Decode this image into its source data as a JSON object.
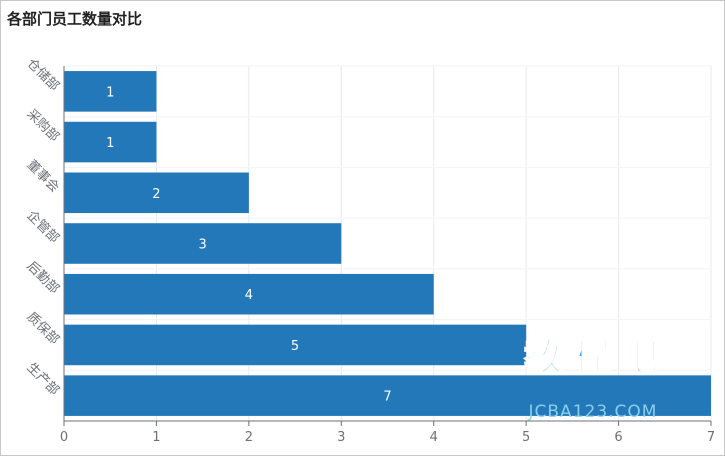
{
  "chart_data": {
    "type": "bar",
    "orientation": "horizontal",
    "title": "各部门员工数量对比",
    "categories": [
      "生产部",
      "质保部",
      "后勤部",
      "企管部",
      "董事会",
      "采购部",
      "仓储部"
    ],
    "values": [
      7,
      5,
      4,
      3,
      2,
      1,
      1
    ],
    "xlabel": "",
    "ylabel": "",
    "xlim": [
      0,
      7
    ],
    "xticks": [
      0,
      1,
      2,
      3,
      4,
      5,
      6,
      7
    ],
    "grid": true,
    "data_labels": true,
    "legend": "none"
  },
  "colors": {
    "bar": "#2278b8",
    "grid": "#e6e9f0",
    "axis": "#6e7079",
    "tick_text": "#6e7079",
    "label_text": "#ffffff"
  },
  "watermark": {
    "main": "教程吧",
    "sub": "JCBA123.COM"
  }
}
